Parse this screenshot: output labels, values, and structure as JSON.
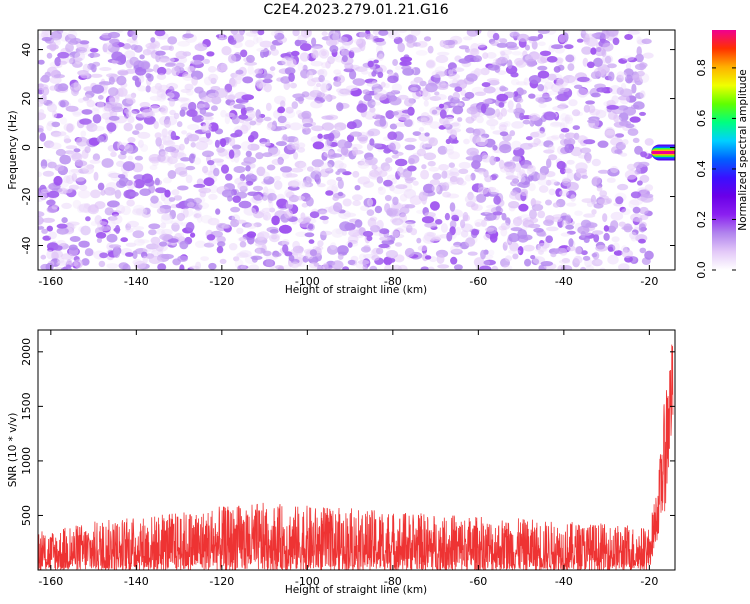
{
  "figure": {
    "title": "C2E4.2023.279.01.21.G16"
  },
  "chart_data": [
    {
      "type": "heatmap",
      "xlabel": "Height of straight line (km)",
      "ylabel": "Frequency (Hz)",
      "xlim": [
        -163,
        -14
      ],
      "ylim": [
        -50,
        48
      ],
      "x_ticks": [
        -160,
        -140,
        -120,
        -100,
        -80,
        -60,
        -40,
        -20
      ],
      "y_ticks": [
        -40,
        -20,
        0,
        20,
        40
      ],
      "data_x_range": [
        -163,
        -20
      ],
      "signal": {
        "x_start": -20,
        "x_end": -14,
        "frequency_hz": -2,
        "amplitude": 0.95
      },
      "background_amplitude": [
        0.0,
        0.45
      ],
      "colorbar": {
        "label": "Normalized spectral amplitude",
        "range": [
          0.0,
          0.95
        ],
        "ticks": [
          0.0,
          0.2,
          0.4,
          0.6,
          0.8
        ],
        "tick_labels": [
          "0.0",
          "0.2",
          "0.4",
          "0.6",
          "0.8"
        ],
        "colors": [
          "#ffffff",
          "#e3c8f8",
          "#b184ee",
          "#8b20f0",
          "#6a00e8",
          "#3a10ff",
          "#0060ff",
          "#00d0ff",
          "#00ff80",
          "#60ff00",
          "#f0ff00",
          "#ffb000",
          "#ff3000",
          "#f00090"
        ]
      }
    },
    {
      "type": "line",
      "xlabel": "Height of straight line (km)",
      "ylabel": "SNR (10 * v/v)",
      "xlim": [
        -163,
        -14
      ],
      "ylim": [
        0,
        2200
      ],
      "x_ticks": [
        -160,
        -140,
        -120,
        -100,
        -80,
        -60,
        -40,
        -20
      ],
      "y_ticks": [
        500,
        1000,
        1500,
        2000
      ],
      "color": "#ee3333",
      "series_description_points": [
        {
          "x": -163,
          "y_min": 0,
          "y_max": 350
        },
        {
          "x": -150,
          "y_min": 0,
          "y_max": 450
        },
        {
          "x": -112,
          "y_min": 0,
          "y_max": 620
        },
        {
          "x": -20,
          "y_min": 0,
          "y_max": 400
        },
        {
          "x": -18,
          "y_min": 300,
          "y_max": 800
        },
        {
          "x": -16,
          "y_min": 600,
          "y_max": 1800
        },
        {
          "x": -14.5,
          "y_min": 1300,
          "y_max": 2150
        }
      ]
    }
  ]
}
